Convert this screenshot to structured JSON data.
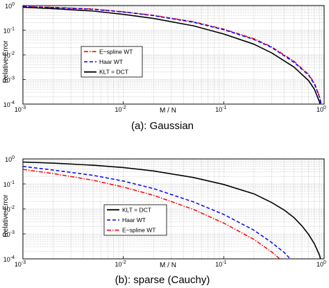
{
  "chart_data": [
    {
      "type": "line",
      "caption": "(a): Gaussian",
      "xlabel": "M / N",
      "ylabel": "Relative Error",
      "xscale": "log",
      "yscale": "log",
      "xlim": [
        0.001,
        1
      ],
      "ylim": [
        0.0001,
        1
      ],
      "xtick_labels": [
        {
          "base": "10",
          "exp": "-3"
        },
        {
          "base": "10",
          "exp": "-2"
        },
        {
          "base": "10",
          "exp": "-1"
        },
        {
          "base": "10",
          "exp": "0"
        }
      ],
      "ytick_labels": [
        {
          "base": "10",
          "exp": "-4"
        },
        {
          "base": "10",
          "exp": "-3"
        },
        {
          "base": "10",
          "exp": "-2"
        },
        {
          "base": "10",
          "exp": "-1"
        },
        {
          "base": "10",
          "exp": "0"
        }
      ],
      "grid": true,
      "legend_position": "lower-left",
      "x": [
        0.001,
        0.002,
        0.005,
        0.01,
        0.02,
        0.05,
        0.1,
        0.2,
        0.3,
        0.5,
        0.7,
        0.8,
        0.9,
        0.95
      ],
      "series": [
        {
          "name": "E−spline WT",
          "color": "#ff0000",
          "dash": "dashdot",
          "values": [
            0.92,
            0.85,
            0.72,
            0.56,
            0.4,
            0.22,
            0.11,
            0.045,
            0.021,
            0.0055,
            0.0016,
            0.0007,
            0.0002,
            8e-05
          ]
        },
        {
          "name": "Haar WT",
          "color": "#0000ff",
          "dash": "dashed",
          "values": [
            0.9,
            0.83,
            0.7,
            0.55,
            0.39,
            0.21,
            0.105,
            0.042,
            0.02,
            0.005,
            0.0015,
            0.00065,
            0.00019,
            7e-05
          ]
        },
        {
          "name": "KLT = DCT",
          "color": "#000000",
          "dash": "solid",
          "values": [
            0.85,
            0.75,
            0.6,
            0.44,
            0.3,
            0.15,
            0.07,
            0.027,
            0.012,
            0.0032,
            0.0009,
            0.0004,
            0.00012,
            5e-05
          ]
        }
      ]
    },
    {
      "type": "line",
      "caption": "(b): sparse (Cauchy)",
      "xlabel": "M / N",
      "ylabel": "Relative Error",
      "xscale": "log",
      "yscale": "log",
      "xlim": [
        0.001,
        1
      ],
      "ylim": [
        0.0001,
        1
      ],
      "xtick_labels": [
        {
          "base": "10",
          "exp": "-3"
        },
        {
          "base": "10",
          "exp": "-2"
        },
        {
          "base": "10",
          "exp": "-1"
        },
        {
          "base": "10",
          "exp": "0"
        }
      ],
      "ytick_labels": [
        {
          "base": "10",
          "exp": "-4"
        },
        {
          "base": "10",
          "exp": "-3"
        },
        {
          "base": "10",
          "exp": "-2"
        },
        {
          "base": "10",
          "exp": "-1"
        },
        {
          "base": "10",
          "exp": "0"
        }
      ],
      "grid": true,
      "legend_position": "lower-left",
      "x": [
        0.001,
        0.002,
        0.005,
        0.01,
        0.02,
        0.05,
        0.1,
        0.2,
        0.3,
        0.4,
        0.5,
        0.6,
        0.7,
        0.8,
        0.9,
        0.95
      ],
      "series": [
        {
          "name": "KLT = DCT",
          "color": "#000000",
          "dash": "solid",
          "values": [
            0.75,
            0.68,
            0.56,
            0.45,
            0.33,
            0.18,
            0.095,
            0.04,
            0.018,
            0.009,
            0.0045,
            0.0021,
            0.00095,
            0.0004,
            0.00014,
            6e-05
          ]
        },
        {
          "name": "Haar WT",
          "color": "#0000ff",
          "dash": "dashed",
          "values": [
            0.5,
            0.36,
            0.22,
            0.13,
            0.065,
            0.019,
            0.006,
            0.0014,
            0.00045,
            0.00018,
            7e-05,
            null,
            null,
            null,
            null,
            null
          ]
        },
        {
          "name": "E−spline WT",
          "color": "#ff0000",
          "dash": "dashdot",
          "values": [
            0.38,
            0.26,
            0.14,
            0.075,
            0.035,
            0.0095,
            0.0027,
            0.0006,
            0.00019,
            7e-05,
            null,
            null,
            null,
            null,
            null,
            null
          ]
        }
      ]
    }
  ]
}
